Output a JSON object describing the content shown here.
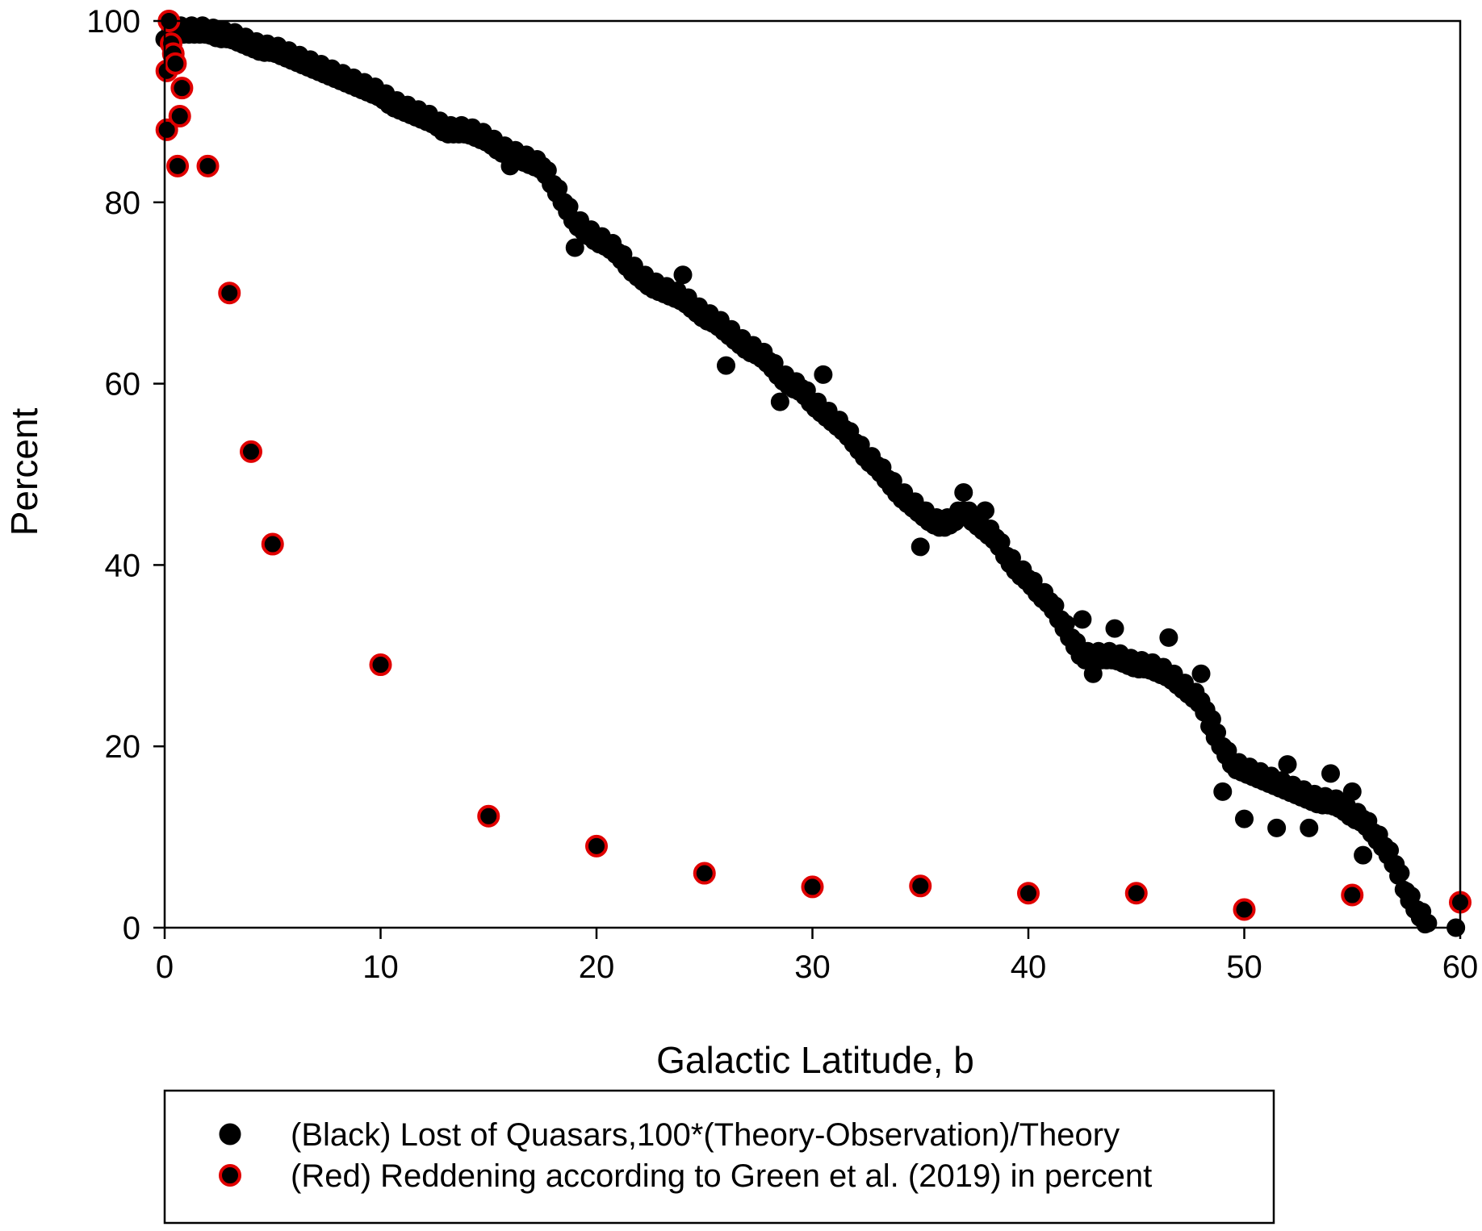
{
  "chart_data": {
    "type": "scatter",
    "xlabel": "Galactic Latitude, b",
    "ylabel": "Percent",
    "xlim": [
      0,
      60
    ],
    "ylim": [
      0,
      100
    ],
    "xticks": [
      0,
      10,
      20,
      30,
      40,
      50,
      60
    ],
    "yticks": [
      0,
      20,
      40,
      60,
      80,
      100
    ],
    "grid": false,
    "legend_placement": "bottom",
    "series": [
      {
        "name": "(Black) Lost of Quasars,100*(Theory-Observation)/Theory",
        "color": "#000000",
        "edge": "#000000",
        "points": [
          [
            0,
            98
          ],
          [
            0.5,
            99
          ],
          [
            1,
            99
          ],
          [
            1.5,
            99
          ],
          [
            2,
            99
          ],
          [
            2.5,
            98.5
          ],
          [
            3,
            98.5
          ],
          [
            3.5,
            98
          ],
          [
            4,
            97.5
          ],
          [
            4.5,
            97
          ],
          [
            5,
            97
          ],
          [
            5.5,
            96.5
          ],
          [
            6,
            96
          ],
          [
            6.5,
            95.5
          ],
          [
            7,
            95
          ],
          [
            7.5,
            94.5
          ],
          [
            8,
            94
          ],
          [
            8.5,
            93.5
          ],
          [
            9,
            93
          ],
          [
            9.5,
            92.5
          ],
          [
            10,
            92
          ],
          [
            10.5,
            91
          ],
          [
            11,
            90.5
          ],
          [
            11.5,
            90
          ],
          [
            12,
            89.5
          ],
          [
            12.5,
            89
          ],
          [
            13,
            88
          ],
          [
            13.5,
            88
          ],
          [
            14,
            88
          ],
          [
            14.5,
            87.5
          ],
          [
            15,
            87
          ],
          [
            15.5,
            86
          ],
          [
            16,
            85.5
          ],
          [
            16.5,
            85
          ],
          [
            17,
            84.5
          ],
          [
            17.5,
            84
          ],
          [
            18,
            82
          ],
          [
            18.5,
            80
          ],
          [
            19,
            78
          ],
          [
            19.5,
            77
          ],
          [
            20,
            76
          ],
          [
            20.5,
            75.5
          ],
          [
            21,
            74.5
          ],
          [
            21.5,
            73
          ],
          [
            22,
            72
          ],
          [
            22.5,
            71
          ],
          [
            23,
            70.5
          ],
          [
            23.5,
            70
          ],
          [
            24,
            69.5
          ],
          [
            24.5,
            68.5
          ],
          [
            25,
            67.5
          ],
          [
            25.5,
            67
          ],
          [
            26,
            66
          ],
          [
            26.5,
            65
          ],
          [
            27,
            64
          ],
          [
            27.5,
            63.5
          ],
          [
            28,
            62.5
          ],
          [
            28.5,
            61
          ],
          [
            29,
            60
          ],
          [
            29.5,
            59.5
          ],
          [
            30,
            58
          ],
          [
            30.5,
            57
          ],
          [
            31,
            56
          ],
          [
            31.5,
            55
          ],
          [
            32,
            53.5
          ],
          [
            32.5,
            52
          ],
          [
            33,
            51
          ],
          [
            33.5,
            49.5
          ],
          [
            34,
            48
          ],
          [
            34.5,
            47
          ],
          [
            35,
            46
          ],
          [
            35.5,
            45
          ],
          [
            36,
            44.5
          ],
          [
            36.5,
            45
          ],
          [
            37,
            46
          ],
          [
            37.5,
            45
          ],
          [
            38,
            44
          ],
          [
            38.5,
            43
          ],
          [
            39,
            41
          ],
          [
            39.5,
            39.5
          ],
          [
            40,
            38.5
          ],
          [
            40.5,
            37
          ],
          [
            41,
            36
          ],
          [
            41.5,
            34
          ],
          [
            42,
            32
          ],
          [
            42.5,
            30
          ],
          [
            43,
            30
          ],
          [
            43.5,
            30
          ],
          [
            44,
            30
          ],
          [
            44.5,
            29.5
          ],
          [
            45,
            29
          ],
          [
            45.5,
            29
          ],
          [
            46,
            28.5
          ],
          [
            46.5,
            28
          ],
          [
            47,
            27
          ],
          [
            47.5,
            26
          ],
          [
            48,
            25
          ],
          [
            48.5,
            22
          ],
          [
            49,
            20
          ],
          [
            49.5,
            18
          ],
          [
            50,
            17.5
          ],
          [
            50.5,
            17
          ],
          [
            51,
            16.5
          ],
          [
            51.5,
            16
          ],
          [
            52,
            15.5
          ],
          [
            52.5,
            15
          ],
          [
            53,
            14.5
          ],
          [
            53.5,
            14
          ],
          [
            54,
            14
          ],
          [
            54.5,
            13.5
          ],
          [
            55,
            12.5
          ],
          [
            55.5,
            12
          ],
          [
            56,
            10.5
          ],
          [
            56.5,
            9
          ],
          [
            57,
            7
          ],
          [
            57.5,
            4
          ],
          [
            58,
            2
          ],
          [
            58.5,
            0.5
          ],
          [
            59.8,
            0
          ],
          [
            51.5,
            11
          ],
          [
            26,
            62
          ],
          [
            30.5,
            61
          ],
          [
            37,
            48
          ],
          [
            50,
            12
          ],
          [
            16,
            84
          ],
          [
            24,
            72
          ],
          [
            38,
            46
          ],
          [
            42.5,
            34
          ],
          [
            44,
            33
          ],
          [
            46.5,
            32
          ],
          [
            48,
            28
          ],
          [
            48.5,
            23
          ],
          [
            52,
            18
          ],
          [
            54,
            17
          ],
          [
            55,
            15
          ],
          [
            53,
            11
          ],
          [
            55.5,
            8
          ],
          [
            19,
            75
          ],
          [
            28.5,
            58
          ],
          [
            35,
            42
          ],
          [
            43,
            28
          ],
          [
            49,
            15
          ]
        ]
      },
      {
        "name": "(Red) Reddening according to Green et al. (2019) in percent",
        "color": "#000000",
        "edge": "#e00000",
        "points": [
          [
            0.1,
            88
          ],
          [
            0.1,
            94.5
          ],
          [
            0.2,
            100
          ],
          [
            0.3,
            97.5
          ],
          [
            0.4,
            96.4
          ],
          [
            0.5,
            95.3
          ],
          [
            0.8,
            92.6
          ],
          [
            0.7,
            89.5
          ],
          [
            0.6,
            84
          ],
          [
            2,
            84
          ],
          [
            3,
            70
          ],
          [
            4,
            52.5
          ],
          [
            5,
            42.3
          ],
          [
            10,
            29
          ],
          [
            15,
            12.3
          ],
          [
            20,
            9
          ],
          [
            25,
            6
          ],
          [
            30,
            4.5
          ],
          [
            35,
            4.6
          ],
          [
            40,
            3.8
          ],
          [
            45,
            3.8
          ],
          [
            50,
            2
          ],
          [
            55,
            3.6
          ],
          [
            60,
            2.8
          ]
        ]
      }
    ]
  }
}
